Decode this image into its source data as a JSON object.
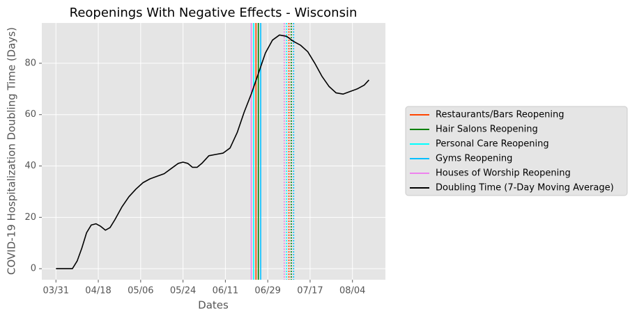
{
  "chart_data": {
    "type": "line",
    "title": "Reopenings With Negative Effects - Wisconsin",
    "xlabel": "Dates",
    "ylabel": "COVID-19 Hospitalization Doubling Time (Days)",
    "xlim": [
      "03/25",
      "08/18"
    ],
    "xticks": [
      "03/31",
      "04/18",
      "05/06",
      "05/24",
      "06/11",
      "06/29",
      "07/17",
      "08/04"
    ],
    "ylim": [
      -4.3,
      95.7
    ],
    "yticks": [
      0,
      20,
      40,
      60,
      80
    ],
    "grid": true,
    "legend": "right",
    "series": [
      {
        "name": "Restaurants/Bars Reopening",
        "color": "#ff4500",
        "x": [
          "06/24",
          "07/08"
        ]
      },
      {
        "name": "Hair Salons Reopening",
        "color": "#008000",
        "x": [
          "06/25",
          "07/09"
        ]
      },
      {
        "name": "Personal Care Reopening",
        "color": "#00ffff",
        "x": [
          "06/23",
          "07/07"
        ]
      },
      {
        "name": "Gyms Reopening",
        "color": "#00bfff",
        "x": [
          "06/26",
          "07/10"
        ]
      },
      {
        "name": "Houses of Worship Reopening",
        "color": "#ee82ee",
        "x": [
          "06/22",
          "07/06"
        ]
      },
      {
        "name": "Doubling Time (7-Day Moving Average)",
        "color": "#000000",
        "x": [
          "03/31",
          "04/07",
          "04/09",
          "04/11",
          "04/13",
          "04/15",
          "04/17",
          "04/19",
          "04/21",
          "04/23",
          "04/25",
          "04/28",
          "05/01",
          "05/04",
          "05/07",
          "05/10",
          "05/13",
          "05/16",
          "05/19",
          "05/22",
          "05/24",
          "05/26",
          "05/28",
          "05/30",
          "06/01",
          "06/04",
          "06/07",
          "06/10",
          "06/13",
          "06/16",
          "06/19",
          "06/22",
          "06/25",
          "06/28",
          "07/01",
          "07/04",
          "07/07",
          "07/10",
          "07/13",
          "07/16",
          "07/19",
          "07/22",
          "07/25",
          "07/28",
          "07/31",
          "08/03",
          "08/06",
          "08/09",
          "08/11"
        ],
        "values": [
          0,
          0,
          3,
          8,
          14,
          17,
          17.5,
          16.5,
          15,
          16,
          19,
          24,
          28,
          31,
          33.5,
          35,
          36,
          37,
          39,
          41,
          41.5,
          41,
          39.5,
          39.5,
          41,
          44,
          44.5,
          45,
          47,
          53,
          61,
          68,
          76,
          84,
          89,
          91,
          90.5,
          88.5,
          87,
          84.5,
          80,
          75,
          71,
          68.5,
          68,
          69,
          70,
          71.5,
          73.5
        ]
      }
    ]
  }
}
